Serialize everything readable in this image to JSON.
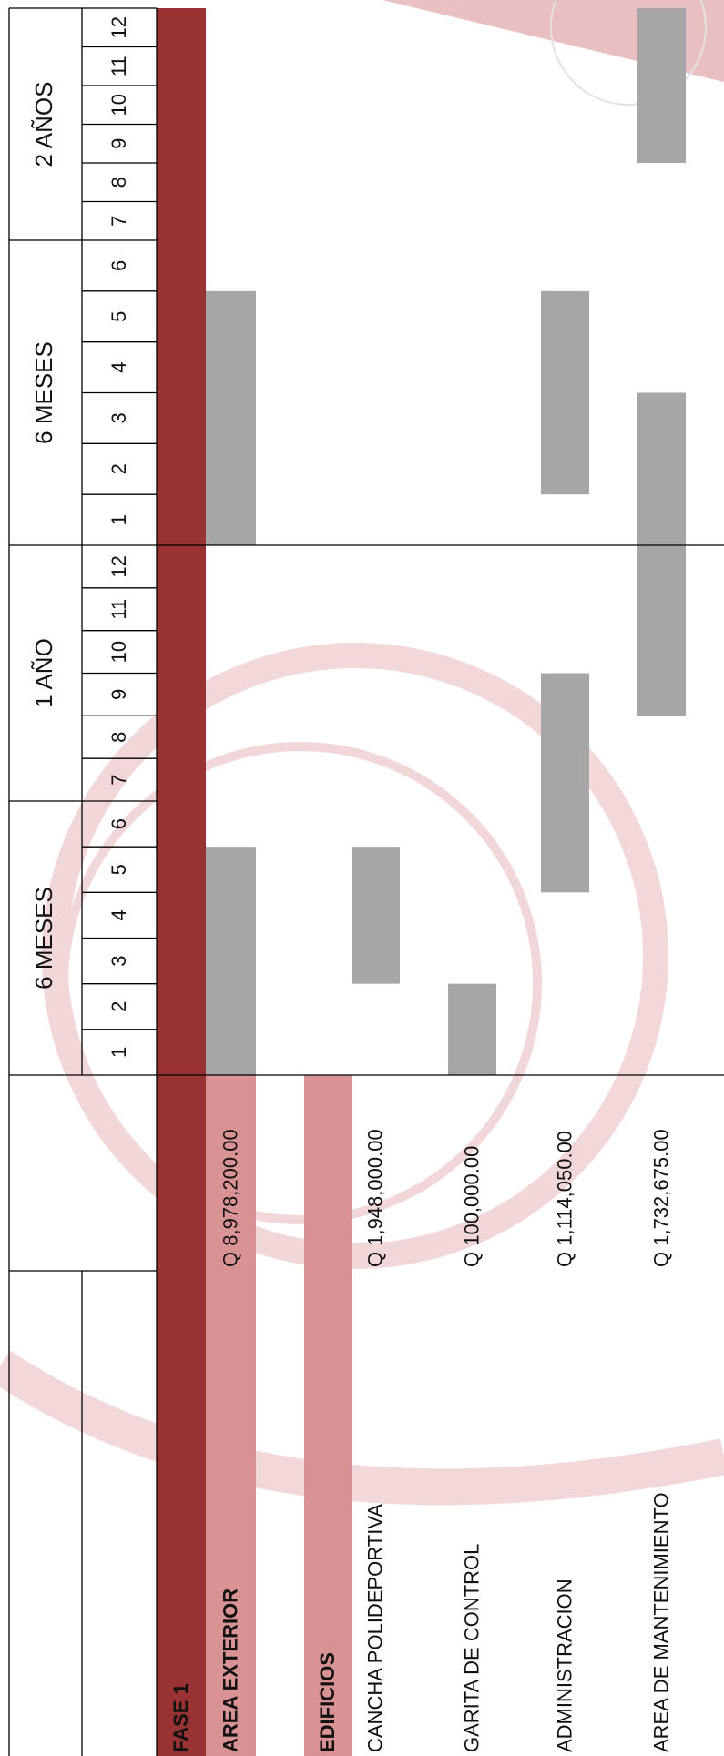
{
  "header": {
    "blocks": [
      {
        "label": "6 MESES",
        "months": [
          1,
          2,
          3,
          4,
          5,
          6
        ]
      },
      {
        "label": "1 AÑO",
        "months": [
          7,
          8,
          9,
          10,
          11,
          12
        ]
      },
      {
        "label": "6 MESES",
        "months": [
          1,
          2,
          3,
          4,
          5,
          6
        ]
      },
      {
        "label": "2 AÑOS",
        "months": [
          7,
          8,
          9,
          10,
          11,
          12
        ]
      }
    ]
  },
  "bar_color": "#a6a6a6",
  "rows": [
    {
      "label": "FASE 1",
      "color": "#993333",
      "bold": true,
      "bars": []
    },
    {
      "label": "AREA EXTERIOR",
      "cost": "Q 8,978,200.00",
      "color": "#d99395",
      "bold": true,
      "bars": [
        {
          "start": 1,
          "end": 5
        },
        {
          "start": 13,
          "end": 17
        }
      ]
    },
    {
      "label": "EDIFICIOS",
      "color": "#d99395",
      "bold": true,
      "bars": []
    },
    {
      "label": "CANCHA POLIDEPORTIVA",
      "cost": "Q 1,948,000.00",
      "bars": [
        {
          "start": 3,
          "end": 5
        }
      ]
    },
    {
      "label": "GARITA DE CONTROL",
      "cost": "Q 100,000.00",
      "bars": [
        {
          "start": 1,
          "end": 2
        }
      ]
    },
    {
      "label": "ADMINISTRACION",
      "cost": "Q  1,114,050.00",
      "bars": [
        {
          "start": 5,
          "end": 9
        },
        {
          "start": 14,
          "end": 17
        }
      ]
    },
    {
      "label": "AREA DE MANTENIMIENTO",
      "cost": "Q 1,732,675.00",
      "bars": [
        {
          "start": 9,
          "end": 15
        },
        {
          "start": 21,
          "end": 24
        }
      ]
    }
  ]
}
